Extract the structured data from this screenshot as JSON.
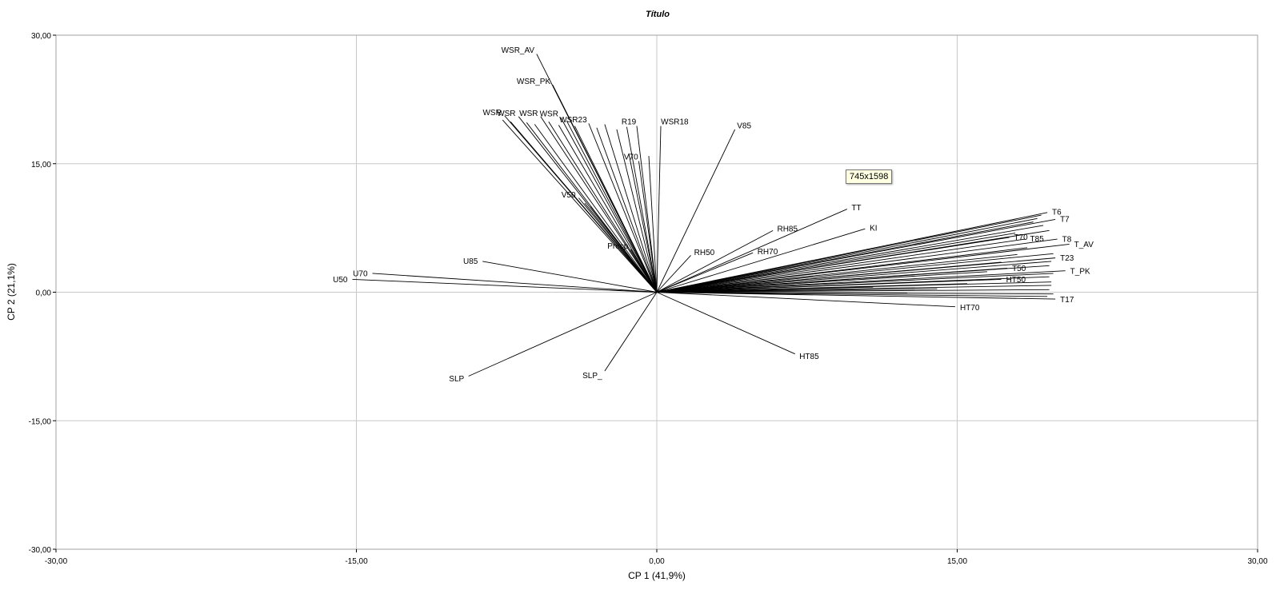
{
  "tooltip": "745x1598",
  "chart_data": {
    "type": "scatter",
    "subtype": "biplot-vectors",
    "title": "Título",
    "xlabel": "CP 1 (41,9%)",
    "ylabel": "CP 2 (21,1%)",
    "xlim": [
      -30,
      30
    ],
    "ylim": [
      -30,
      30
    ],
    "xticks": [
      "-30,00",
      "-15,00",
      "0,00",
      "15,00",
      "30,00"
    ],
    "yticks": [
      "30,00",
      "15,00",
      "0,00",
      "-15,00",
      "-30,00"
    ],
    "grid": true,
    "origin": [
      0,
      0
    ],
    "vectors": [
      {
        "name": "WSR_AV",
        "x": -6.0,
        "y": 27.8
      },
      {
        "name": "WSR_PK",
        "x": -5.2,
        "y": 24.2
      },
      {
        "name": "WSR",
        "x": -7.6,
        "y": 20.6
      },
      {
        "name": "WSR",
        "x": -6.9,
        "y": 20.5
      },
      {
        "name": "WSR",
        "x": -5.8,
        "y": 20.5
      },
      {
        "name": "WSR",
        "x": -4.8,
        "y": 20.4
      },
      {
        "name": "WSR23",
        "x": -3.4,
        "y": 19.7
      },
      {
        "name": "R19",
        "x": -1.0,
        "y": 19.4
      },
      {
        "name": "WSR18",
        "x": 0.2,
        "y": 19.4
      },
      {
        "name": "V70",
        "x": -0.9,
        "y": 15.3
      },
      {
        "name": "V50",
        "x": -3.9,
        "y": 11.0
      },
      {
        "name": "V85",
        "x": 3.9,
        "y": 19.0
      },
      {
        "name": "Precp",
        "x": -1.3,
        "y": 5.0
      },
      {
        "name": "U85",
        "x": -8.7,
        "y": 3.6
      },
      {
        "name": "U70",
        "x": -14.2,
        "y": 2.2
      },
      {
        "name": "U50",
        "x": -15.2,
        "y": 1.5
      },
      {
        "name": "SLP",
        "x": -9.4,
        "y": -9.8
      },
      {
        "name": "SLP_",
        "x": -2.6,
        "y": -9.2
      },
      {
        "name": "HT85",
        "x": 6.9,
        "y": -7.2
      },
      {
        "name": "HT70",
        "x": 14.9,
        "y": -1.7
      },
      {
        "name": "RH50",
        "x": 1.7,
        "y": 4.3
      },
      {
        "name": "RH70",
        "x": 4.8,
        "y": 4.6
      },
      {
        "name": "RH85",
        "x": 5.8,
        "y": 7.2
      },
      {
        "name": "TT",
        "x": 9.5,
        "y": 9.7
      },
      {
        "name": "KI",
        "x": 10.4,
        "y": 7.4
      },
      {
        "name": "T6",
        "x": 19.5,
        "y": 9.3
      },
      {
        "name": "T7",
        "x": 19.9,
        "y": 8.5
      },
      {
        "name": "T70",
        "x": 17.6,
        "y": 6.4
      },
      {
        "name": "T85",
        "x": 18.4,
        "y": 6.2
      },
      {
        "name": "T8",
        "x": 20.0,
        "y": 6.2
      },
      {
        "name": "T_AV",
        "x": 20.6,
        "y": 5.6
      },
      {
        "name": "T23",
        "x": 19.9,
        "y": 4.0
      },
      {
        "name": "T50",
        "x": 17.5,
        "y": 2.8
      },
      {
        "name": "T_PK",
        "x": 20.4,
        "y": 2.5
      },
      {
        "name": "HT50",
        "x": 17.2,
        "y": 1.5
      },
      {
        "name": "T17",
        "x": 19.9,
        "y": -0.8
      }
    ],
    "extra_vectors": [
      {
        "x": 19.2,
        "y": 9.0
      },
      {
        "x": 19.0,
        "y": 8.6
      },
      {
        "x": 18.8,
        "y": 8.2
      },
      {
        "x": 19.3,
        "y": 7.8
      },
      {
        "x": 17.9,
        "y": 6.9
      },
      {
        "x": 19.6,
        "y": 7.2
      },
      {
        "x": 19.8,
        "y": 4.5
      },
      {
        "x": 19.7,
        "y": 3.6
      },
      {
        "x": 19.6,
        "y": 3.1
      },
      {
        "x": 19.8,
        "y": 2.2
      },
      {
        "x": 19.6,
        "y": 1.8
      },
      {
        "x": 19.7,
        "y": 1.2
      },
      {
        "x": 19.7,
        "y": 0.8
      },
      {
        "x": 19.6,
        "y": 0.3
      },
      {
        "x": 19.8,
        "y": -0.2
      },
      {
        "x": 19.5,
        "y": -0.5
      },
      {
        "x": 18.5,
        "y": 5.2
      },
      {
        "x": 18.0,
        "y": 4.4
      },
      {
        "x": 17.2,
        "y": 3.5
      },
      {
        "x": 16.5,
        "y": 2.4
      },
      {
        "x": 15.5,
        "y": 1.0
      },
      {
        "x": 14.0,
        "y": 0.4
      },
      {
        "x": 12.5,
        "y": -0.1
      },
      {
        "x": 10.8,
        "y": 0.6
      },
      {
        "x": -7.7,
        "y": 20.1
      },
      {
        "x": -7.3,
        "y": 19.9
      },
      {
        "x": -6.5,
        "y": 19.8
      },
      {
        "x": -6.1,
        "y": 19.6
      },
      {
        "x": -5.4,
        "y": 19.9
      },
      {
        "x": -4.9,
        "y": 19.5
      },
      {
        "x": -4.5,
        "y": 20.0
      },
      {
        "x": -4.1,
        "y": 19.4
      },
      {
        "x": -3.0,
        "y": 19.2
      },
      {
        "x": -2.6,
        "y": 19.6
      },
      {
        "x": -2.0,
        "y": 19.0
      },
      {
        "x": -1.5,
        "y": 19.3
      },
      {
        "x": -0.4,
        "y": 15.9
      },
      {
        "x": -1.4,
        "y": 16.2
      },
      {
        "x": -3.6,
        "y": 10.4
      },
      {
        "x": -4.2,
        "y": 11.4
      },
      {
        "x": -3.3,
        "y": 10.0
      }
    ]
  }
}
